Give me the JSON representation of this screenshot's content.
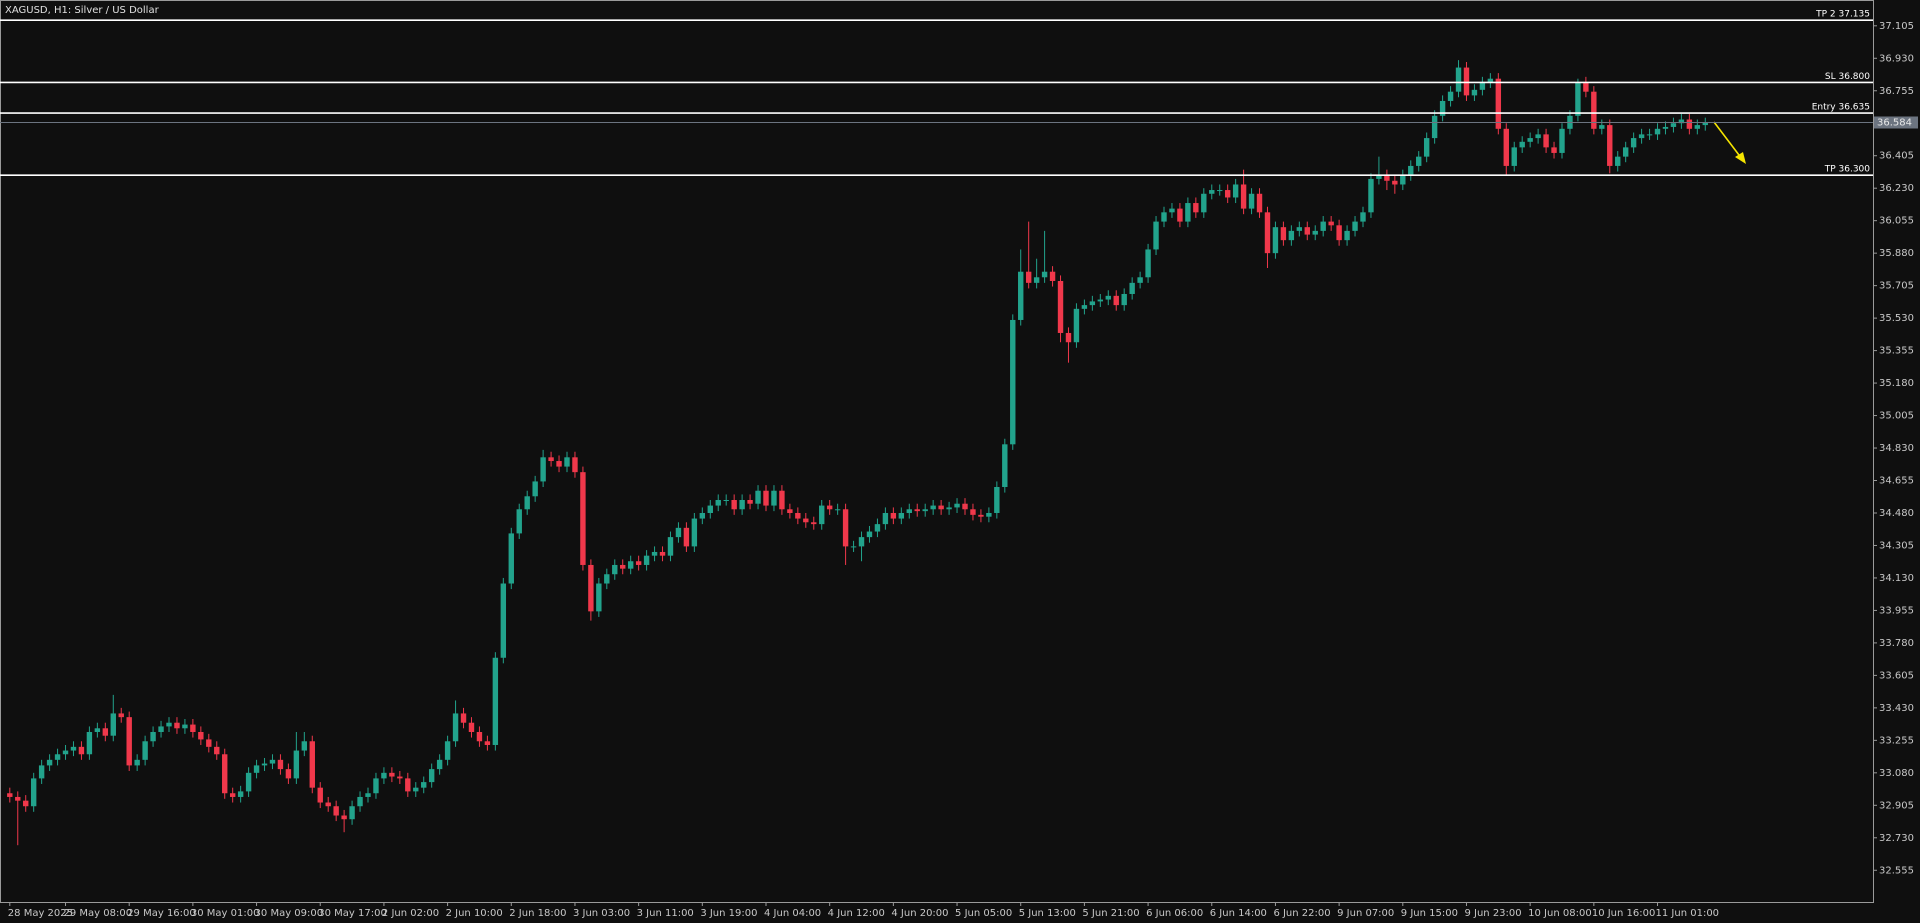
{
  "chart_data": {
    "type": "candlestick",
    "title": "XAGUSD, H1:  Silver / US Dollar",
    "up_color": "#22a38c",
    "down_color": "#f0384b",
    "categories": [
      "28 May 2025",
      null,
      null,
      null,
      null,
      null,
      null,
      "29 May 08:00",
      null,
      null,
      null,
      null,
      null,
      null,
      null,
      "29 May 16:00",
      null,
      null,
      null,
      null,
      null,
      null,
      null,
      "30 May 01:00",
      null,
      null,
      null,
      null,
      null,
      null,
      null,
      "30 May 09:00",
      null,
      null,
      null,
      null,
      null,
      null,
      null,
      "30 May 17:00",
      null,
      null,
      null,
      null,
      null,
      null,
      null,
      "2 Jun 02:00",
      null,
      null,
      null,
      null,
      null,
      null,
      null,
      "2 Jun 10:00",
      null,
      null,
      null,
      null,
      null,
      null,
      null,
      "2 Jun 18:00",
      null,
      null,
      null,
      null,
      null,
      null,
      null,
      "3 Jun 03:00",
      null,
      null,
      null,
      null,
      null,
      null,
      null,
      "3 Jun 11:00",
      null,
      null,
      null,
      null,
      null,
      null,
      null,
      "3 Jun 19:00",
      null,
      null,
      null,
      null,
      null,
      null,
      null,
      "4 Jun 04:00",
      null,
      null,
      null,
      null,
      null,
      null,
      null,
      "4 Jun 12:00",
      null,
      null,
      null,
      null,
      null,
      null,
      null,
      "4 Jun 20:00",
      null,
      null,
      null,
      null,
      null,
      null,
      null,
      "5 Jun 05:00",
      null,
      null,
      null,
      null,
      null,
      null,
      null,
      "5 Jun 13:00",
      null,
      null,
      null,
      null,
      null,
      null,
      null,
      "5 Jun 21:00",
      null,
      null,
      null,
      null,
      null,
      null,
      null,
      "6 Jun 06:00",
      null,
      null,
      null,
      null,
      null,
      null,
      null,
      "6 Jun 14:00",
      null,
      null,
      null,
      null,
      null,
      null,
      null,
      "6 Jun 22:00",
      null,
      null,
      null,
      null,
      null,
      null,
      null,
      "9 Jun 07:00",
      null,
      null,
      null,
      null,
      null,
      null,
      null,
      "9 Jun 15:00",
      null,
      null,
      null,
      null,
      null,
      null,
      null,
      "9 Jun 23:00",
      null,
      null,
      null,
      null,
      null,
      null,
      null,
      "10 Jun 08:00",
      null,
      null,
      null,
      null,
      null,
      null,
      null,
      "10 Jun 16:00",
      null,
      null,
      null,
      null,
      null,
      null,
      null,
      "11 Jun 01:00",
      null,
      null,
      null,
      null,
      null,
      null
    ],
    "open": [
      32.97,
      32.95,
      32.93,
      32.9,
      33.05,
      33.12,
      33.15,
      33.18,
      33.2,
      33.22,
      33.18,
      33.3,
      33.32,
      33.28,
      33.4,
      33.38,
      33.12,
      33.15,
      33.25,
      33.3,
      33.33,
      33.35,
      33.32,
      33.34,
      33.3,
      33.26,
      33.22,
      33.18,
      32.97,
      32.95,
      32.98,
      33.08,
      33.12,
      33.13,
      33.15,
      33.1,
      33.05,
      33.2,
      33.25,
      33.0,
      32.92,
      32.9,
      32.85,
      32.83,
      32.9,
      32.95,
      32.97,
      33.05,
      33.08,
      33.06,
      33.05,
      32.98,
      33.0,
      33.03,
      33.1,
      33.15,
      33.25,
      33.4,
      33.35,
      33.3,
      33.25,
      33.23,
      33.7,
      34.1,
      34.37,
      34.5,
      34.57,
      34.65,
      34.78,
      34.76,
      34.73,
      34.78,
      34.7,
      34.2,
      33.95,
      34.1,
      34.15,
      34.2,
      34.18,
      34.22,
      34.2,
      34.25,
      34.27,
      34.25,
      34.35,
      34.4,
      34.3,
      34.45,
      34.48,
      34.52,
      34.55,
      34.55,
      34.5,
      34.55,
      34.53,
      34.6,
      34.52,
      34.6,
      34.5,
      34.48,
      34.45,
      34.43,
      34.42,
      34.52,
      34.5,
      34.5,
      34.3,
      34.3,
      34.35,
      34.38,
      34.42,
      34.48,
      34.45,
      34.48,
      34.5,
      34.49,
      34.5,
      34.52,
      34.5,
      34.51,
      34.53,
      34.5,
      34.47,
      34.46,
      34.48,
      34.62,
      34.85,
      35.52,
      35.78,
      35.72,
      35.75,
      35.78,
      35.73,
      35.45,
      35.4,
      35.58,
      35.6,
      35.62,
      35.63,
      35.65,
      35.6,
      35.66,
      35.72,
      35.75,
      35.9,
      36.05,
      36.1,
      36.12,
      36.05,
      36.15,
      36.1,
      36.2,
      36.22,
      36.22,
      36.18,
      36.25,
      36.12,
      36.2,
      36.1,
      35.88,
      36.02,
      35.95,
      36.0,
      36.02,
      35.98,
      36.0,
      36.05,
      36.03,
      35.95,
      36.0,
      36.05,
      36.1,
      36.28,
      36.3,
      36.27,
      36.25,
      36.3,
      36.35,
      36.4,
      36.5,
      36.62,
      36.7,
      36.75,
      36.88,
      36.73,
      36.76,
      36.8,
      36.82,
      36.55,
      36.35,
      36.45,
      36.48,
      36.5,
      36.52,
      36.45,
      36.42,
      36.55,
      36.62,
      36.8,
      36.75,
      36.55,
      36.57,
      36.35,
      36.4,
      36.45,
      36.5,
      36.52,
      36.52,
      36.55,
      36.56,
      36.58,
      36.6,
      36.55,
      36.57
    ],
    "high": [
      33.0,
      32.98,
      32.96,
      33.08,
      33.15,
      33.18,
      33.21,
      33.23,
      33.25,
      33.25,
      33.33,
      33.35,
      33.35,
      33.5,
      33.43,
      33.41,
      33.18,
      33.28,
      33.33,
      33.36,
      33.38,
      33.38,
      33.37,
      33.37,
      33.33,
      33.29,
      33.25,
      33.21,
      33.0,
      33.01,
      33.11,
      33.15,
      33.16,
      33.18,
      33.18,
      33.13,
      33.3,
      33.3,
      33.28,
      33.03,
      32.95,
      32.93,
      32.88,
      32.93,
      32.98,
      33.0,
      33.08,
      33.11,
      33.11,
      33.09,
      33.08,
      33.03,
      33.06,
      33.13,
      33.18,
      33.28,
      33.47,
      33.43,
      33.38,
      33.33,
      33.28,
      33.73,
      34.13,
      34.4,
      34.53,
      34.6,
      34.68,
      34.82,
      34.81,
      34.79,
      34.81,
      34.81,
      34.73,
      34.23,
      34.13,
      34.18,
      34.23,
      34.23,
      34.25,
      34.25,
      34.28,
      34.3,
      34.3,
      34.38,
      34.43,
      34.43,
      34.48,
      34.51,
      34.55,
      34.58,
      34.58,
      34.58,
      34.58,
      34.58,
      34.63,
      34.63,
      34.63,
      34.63,
      34.53,
      34.51,
      34.48,
      34.46,
      34.55,
      34.55,
      34.53,
      34.53,
      34.33,
      34.38,
      34.41,
      34.45,
      34.51,
      34.51,
      34.51,
      34.53,
      34.53,
      34.53,
      34.55,
      34.55,
      34.54,
      34.56,
      34.56,
      34.53,
      34.5,
      34.51,
      34.65,
      34.88,
      35.55,
      35.9,
      36.05,
      35.85,
      36.0,
      35.81,
      35.76,
      35.48,
      35.61,
      35.63,
      35.65,
      35.66,
      35.68,
      35.68,
      35.69,
      35.75,
      35.78,
      35.93,
      36.08,
      36.13,
      36.15,
      36.15,
      36.18,
      36.18,
      36.23,
      36.25,
      36.25,
      36.25,
      36.28,
      36.33,
      36.23,
      36.23,
      36.13,
      36.05,
      36.05,
      36.03,
      36.05,
      36.05,
      36.03,
      36.08,
      36.08,
      36.06,
      36.03,
      36.08,
      36.13,
      36.31,
      36.4,
      36.33,
      36.3,
      36.33,
      36.38,
      36.43,
      36.53,
      36.65,
      36.73,
      36.78,
      36.92,
      36.91,
      36.79,
      36.83,
      36.85,
      36.85,
      36.58,
      36.48,
      36.51,
      36.53,
      36.55,
      36.55,
      36.48,
      36.58,
      36.65,
      36.82,
      36.83,
      36.78,
      36.6,
      36.6,
      36.43,
      36.48,
      36.53,
      36.55,
      36.55,
      36.58,
      36.59,
      36.61,
      36.63,
      36.63,
      36.6,
      36.61
    ],
    "low": [
      32.92,
      32.69,
      32.87,
      32.87,
      33.02,
      33.09,
      33.12,
      33.15,
      33.17,
      33.15,
      33.15,
      33.27,
      33.25,
      33.25,
      33.35,
      33.09,
      33.09,
      33.12,
      33.22,
      33.27,
      33.3,
      33.29,
      33.29,
      33.27,
      33.23,
      33.19,
      33.15,
      32.94,
      32.92,
      32.92,
      32.95,
      33.05,
      33.09,
      33.1,
      33.07,
      33.02,
      33.02,
      33.17,
      32.97,
      32.89,
      32.87,
      32.82,
      32.76,
      32.8,
      32.87,
      32.92,
      32.94,
      33.02,
      33.03,
      33.02,
      32.95,
      32.95,
      32.97,
      33.0,
      33.07,
      33.12,
      33.22,
      33.32,
      33.27,
      33.22,
      33.2,
      33.2,
      33.67,
      34.07,
      34.34,
      34.47,
      34.54,
      34.62,
      34.73,
      34.7,
      34.7,
      34.67,
      34.17,
      33.9,
      33.92,
      34.07,
      34.12,
      34.15,
      34.15,
      34.17,
      34.17,
      34.22,
      34.22,
      34.22,
      34.32,
      34.27,
      34.27,
      34.42,
      34.45,
      34.49,
      34.52,
      34.47,
      34.47,
      34.5,
      34.5,
      34.49,
      34.49,
      34.47,
      34.45,
      34.42,
      34.4,
      34.39,
      34.39,
      34.47,
      34.47,
      34.2,
      34.27,
      34.22,
      34.32,
      34.35,
      34.39,
      34.42,
      34.42,
      34.45,
      34.46,
      34.46,
      34.47,
      34.47,
      34.47,
      34.48,
      34.47,
      34.44,
      34.43,
      34.43,
      34.45,
      34.59,
      34.82,
      35.49,
      35.69,
      35.69,
      35.72,
      35.7,
      35.4,
      35.29,
      35.37,
      35.55,
      35.57,
      35.59,
      35.6,
      35.57,
      35.57,
      35.63,
      35.69,
      35.72,
      35.87,
      36.02,
      36.07,
      36.02,
      36.02,
      36.07,
      36.07,
      36.17,
      36.19,
      36.15,
      36.15,
      36.09,
      36.09,
      36.07,
      35.8,
      35.85,
      35.92,
      35.92,
      35.97,
      35.95,
      35.95,
      35.97,
      36.0,
      35.92,
      35.92,
      35.97,
      36.02,
      36.07,
      36.25,
      36.22,
      36.2,
      36.22,
      36.27,
      36.32,
      36.37,
      36.47,
      36.59,
      36.67,
      36.72,
      36.7,
      36.7,
      36.73,
      36.77,
      36.52,
      36.3,
      36.32,
      36.42,
      36.45,
      36.47,
      36.42,
      36.39,
      36.39,
      36.52,
      36.59,
      36.72,
      36.52,
      36.52,
      36.31,
      36.32,
      36.37,
      36.42,
      36.47,
      36.49,
      36.49,
      36.52,
      36.53,
      36.55,
      36.52,
      36.52,
      36.54
    ],
    "close": [
      32.95,
      32.93,
      32.9,
      33.05,
      33.12,
      33.15,
      33.18,
      33.2,
      33.22,
      33.18,
      33.3,
      33.32,
      33.28,
      33.4,
      33.38,
      33.12,
      33.15,
      33.25,
      33.3,
      33.33,
      33.35,
      33.32,
      33.34,
      33.3,
      33.26,
      33.22,
      33.18,
      32.97,
      32.95,
      32.98,
      33.08,
      33.12,
      33.13,
      33.15,
      33.1,
      33.05,
      33.2,
      33.25,
      33.0,
      32.92,
      32.9,
      32.85,
      32.83,
      32.9,
      32.95,
      32.97,
      33.05,
      33.08,
      33.06,
      33.05,
      32.98,
      33.0,
      33.03,
      33.1,
      33.15,
      33.25,
      33.4,
      33.35,
      33.3,
      33.25,
      33.23,
      33.7,
      34.1,
      34.37,
      34.5,
      34.57,
      34.65,
      34.78,
      34.76,
      34.73,
      34.78,
      34.7,
      34.2,
      33.95,
      34.1,
      34.15,
      34.2,
      34.18,
      34.22,
      34.2,
      34.25,
      34.27,
      34.25,
      34.35,
      34.4,
      34.3,
      34.45,
      34.48,
      34.52,
      34.55,
      34.55,
      34.5,
      34.55,
      34.53,
      34.6,
      34.52,
      34.6,
      34.5,
      34.48,
      34.45,
      34.43,
      34.42,
      34.52,
      34.5,
      34.5,
      34.3,
      34.3,
      34.35,
      34.38,
      34.42,
      34.48,
      34.45,
      34.48,
      34.5,
      34.49,
      34.5,
      34.52,
      34.5,
      34.51,
      34.53,
      34.5,
      34.47,
      34.46,
      34.48,
      34.62,
      34.85,
      35.52,
      35.78,
      35.72,
      35.75,
      35.78,
      35.73,
      35.45,
      35.4,
      35.58,
      35.6,
      35.62,
      35.63,
      35.65,
      35.6,
      35.66,
      35.72,
      35.75,
      35.9,
      36.05,
      36.1,
      36.12,
      36.05,
      36.15,
      36.1,
      36.2,
      36.22,
      36.22,
      36.18,
      36.25,
      36.12,
      36.2,
      36.1,
      35.88,
      36.02,
      35.95,
      36.0,
      36.02,
      35.98,
      36.0,
      36.05,
      36.03,
      35.95,
      36.0,
      36.05,
      36.1,
      36.28,
      36.3,
      36.27,
      36.25,
      36.3,
      36.35,
      36.4,
      36.5,
      36.62,
      36.7,
      36.75,
      36.88,
      36.73,
      36.76,
      36.8,
      36.82,
      36.55,
      36.35,
      36.45,
      36.48,
      36.5,
      36.52,
      36.45,
      36.42,
      36.55,
      36.62,
      36.8,
      36.75,
      36.55,
      36.57,
      36.35,
      36.4,
      36.45,
      36.5,
      36.52,
      36.52,
      36.55,
      36.56,
      36.58,
      36.6,
      36.55,
      36.57,
      36.584
    ],
    "ylim": [
      32.384,
      37.244
    ],
    "yticks": [
      32.555,
      {
        "value": 32.73,
        "label": "32.730"
      },
      32.905,
      {
        "value": 33.08,
        "label": "33.080"
      },
      33.255,
      {
        "value": 33.43,
        "label": "33.430"
      },
      33.605,
      {
        "value": 33.78,
        "label": "33.780"
      },
      33.955,
      {
        "value": 34.13,
        "label": "34.130"
      },
      34.305,
      {
        "value": 34.48,
        "label": "34.480"
      },
      34.655,
      {
        "value": 34.83,
        "label": "34.830"
      },
      35.005,
      {
        "value": 35.18,
        "label": "35.180"
      },
      35.355,
      {
        "value": 35.53,
        "label": "35.530"
      },
      35.705,
      {
        "value": 35.88,
        "label": "35.880"
      },
      36.055,
      {
        "value": 36.23,
        "label": "36.230"
      },
      36.405,
      36.755,
      {
        "value": 36.93,
        "label": "36.930"
      },
      37.105
    ],
    "levels": [
      {
        "label": "TP 2 37.135",
        "value": 37.135
      },
      {
        "label": "SL 36.800",
        "value": 36.8
      },
      {
        "label": "Entry 36.635",
        "value": 36.635
      },
      {
        "label": "TP 36.300",
        "value": 36.3
      }
    ],
    "last_price": 36.584,
    "grid": false
  }
}
